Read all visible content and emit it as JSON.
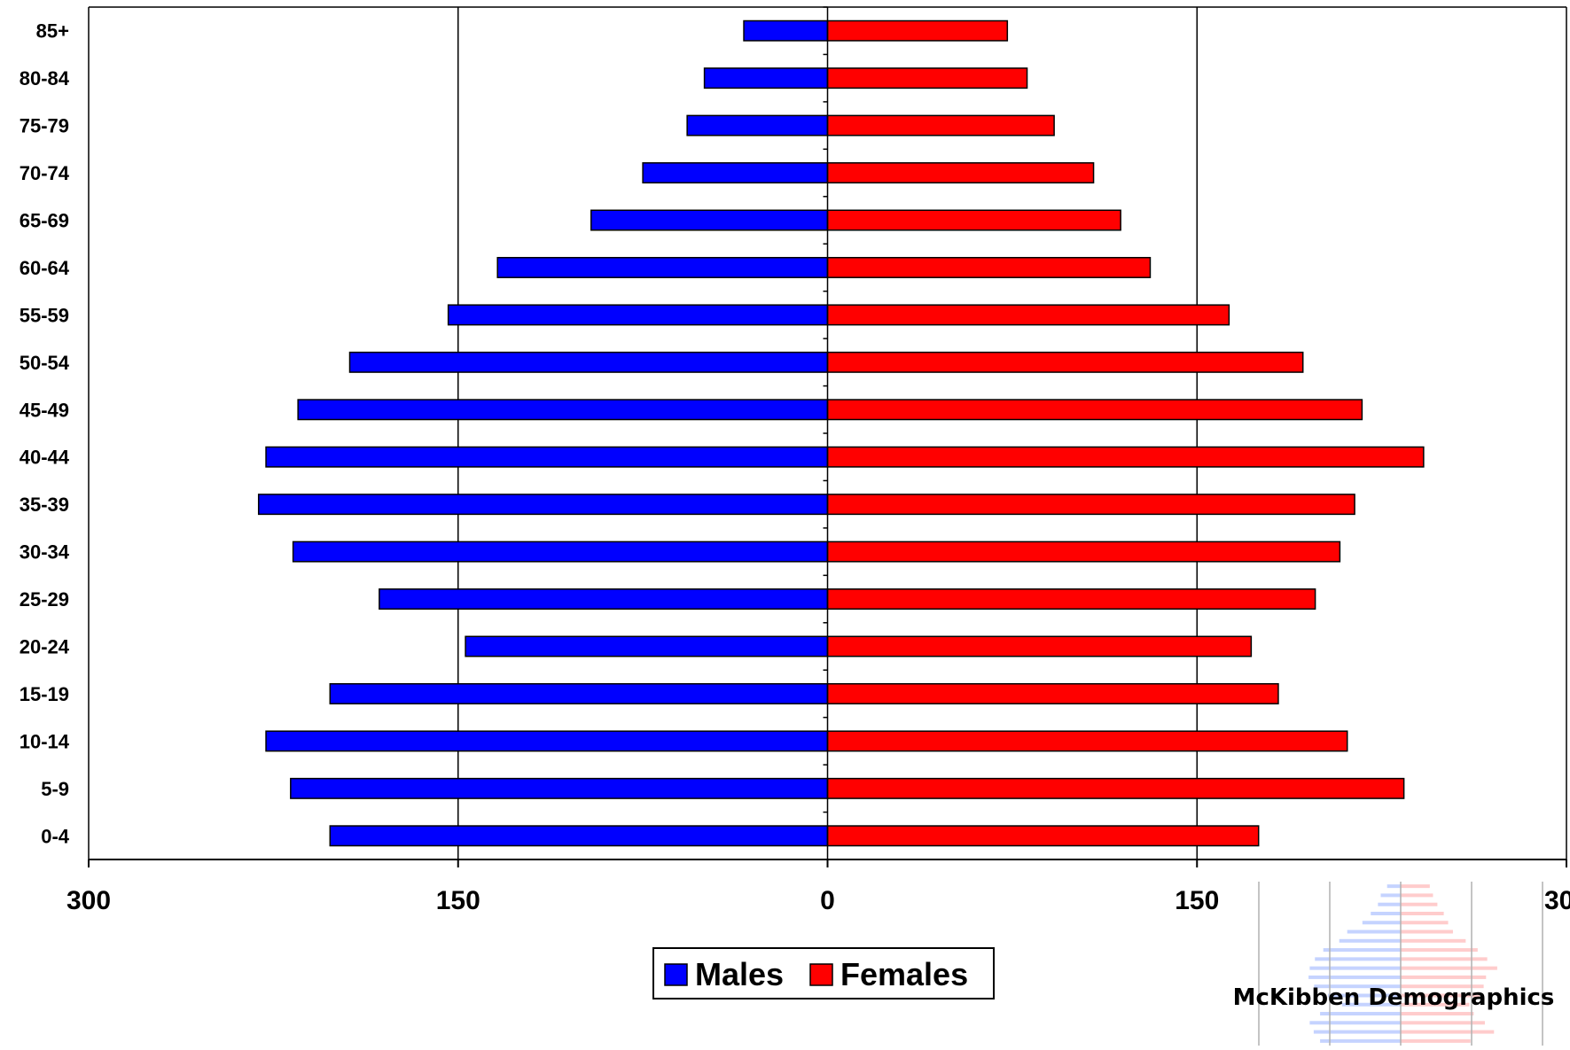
{
  "chart_data": {
    "type": "bar",
    "orientation": "horizontal-population-pyramid",
    "categories": [
      "0-4",
      "5-9",
      "10-14",
      "15-19",
      "20-24",
      "25-29",
      "30-34",
      "35-39",
      "40-44",
      "45-49",
      "50-54",
      "55-59",
      "60-64",
      "65-69",
      "70-74",
      "75-79",
      "80-84",
      "85+"
    ],
    "series": [
      {
        "name": "Males",
        "color": "#0000ff",
        "values": [
          202,
          218,
          228,
          202,
          147,
          182,
          217,
          231,
          228,
          215,
          194,
          154,
          134,
          96,
          75,
          57,
          50,
          34
        ]
      },
      {
        "name": "Females",
        "color": "#ff0000",
        "values": [
          175,
          234,
          211,
          183,
          172,
          198,
          208,
          214,
          242,
          217,
          193,
          163,
          131,
          119,
          108,
          92,
          81,
          73
        ]
      }
    ],
    "xlim": [
      -300,
      300
    ],
    "x_ticks": [
      {
        "value": -300,
        "label": "300"
      },
      {
        "value": -150,
        "label": "150"
      },
      {
        "value": 0,
        "label": "0"
      },
      {
        "value": 150,
        "label": "150"
      },
      {
        "value": 300,
        "label": "300"
      }
    ],
    "xlabel": "",
    "ylabel": "",
    "title": "",
    "grid": "vertical",
    "legend": {
      "placement": "bottom-center",
      "items": [
        "Males",
        "Females"
      ]
    }
  },
  "watermark": {
    "text": "McKibben Demographics"
  }
}
